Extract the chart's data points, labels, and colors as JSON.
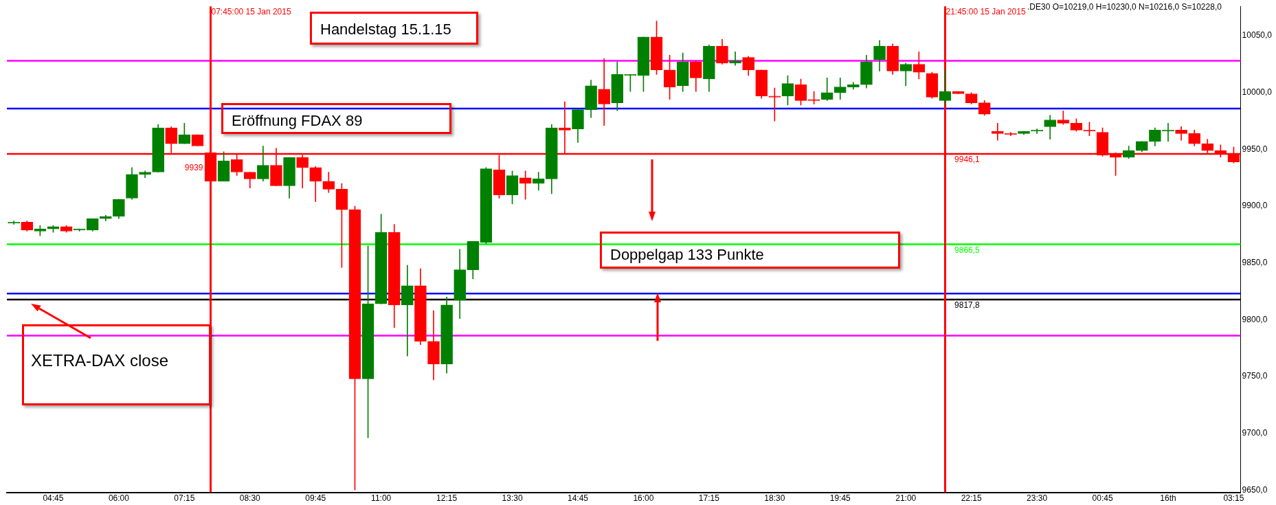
{
  "chart_data": {
    "type": "candlestick",
    "annotations": [
      ".DE30 O=10219,0 H=10230,0 N=10216,0 S=10228,0",
      "Handelstag 15.1.15",
      "Eröffnung FDAX 89",
      "Doppelgap 133 Punkte",
      "XETRA-DAX close",
      {
        "text": "9939",
        "x": "2015-01-15T07:45",
        "y": 9939
      }
    ],
    "x": [
      "2015-01-15T04:00",
      "2015-01-15T04:15",
      "2015-01-15T04:30",
      "2015-01-15T04:45",
      "2015-01-15T05:00",
      "2015-01-15T05:15",
      "2015-01-15T05:30",
      "2015-01-15T05:45",
      "2015-01-15T06:00",
      "2015-01-15T06:15",
      "2015-01-15T06:30",
      "2015-01-15T06:45",
      "2015-01-15T07:00",
      "2015-01-15T07:15",
      "2015-01-15T07:30",
      "2015-01-15T07:45",
      "2015-01-15T08:00",
      "2015-01-15T08:15",
      "2015-01-15T08:30",
      "2015-01-15T08:45",
      "2015-01-15T09:00",
      "2015-01-15T09:15",
      "2015-01-15T09:30",
      "2015-01-15T09:45",
      "2015-01-15T10:00",
      "2015-01-15T10:15",
      "2015-01-15T10:30",
      "2015-01-15T10:45",
      "2015-01-15T11:00",
      "2015-01-15T11:15",
      "2015-01-15T11:30",
      "2015-01-15T11:45",
      "2015-01-15T12:00",
      "2015-01-15T12:15",
      "2015-01-15T12:30",
      "2015-01-15T12:45",
      "2015-01-15T13:00",
      "2015-01-15T13:15",
      "2015-01-15T13:30",
      "2015-01-15T13:45",
      "2015-01-15T14:00",
      "2015-01-15T14:15",
      "2015-01-15T14:30",
      "2015-01-15T14:45",
      "2015-01-15T15:00",
      "2015-01-15T15:15",
      "2015-01-15T15:30",
      "2015-01-15T15:45",
      "2015-01-15T16:00",
      "2015-01-15T16:15",
      "2015-01-15T16:30",
      "2015-01-15T16:45",
      "2015-01-15T17:00",
      "2015-01-15T17:15",
      "2015-01-15T17:30",
      "2015-01-15T17:45",
      "2015-01-15T18:00",
      "2015-01-15T18:15",
      "2015-01-15T18:30",
      "2015-01-15T18:45",
      "2015-01-15T19:00",
      "2015-01-15T19:15",
      "2015-01-15T19:30",
      "2015-01-15T19:45",
      "2015-01-15T20:00",
      "2015-01-15T20:15",
      "2015-01-15T20:30",
      "2015-01-15T20:45",
      "2015-01-15T21:00",
      "2015-01-15T21:15",
      "2015-01-15T21:30",
      "2015-01-15T21:45",
      "2015-01-15T22:00",
      "2015-01-15T22:15",
      "2015-01-15T22:30",
      "2015-01-15T22:45",
      "2015-01-15T23:00",
      "2015-01-15T23:15",
      "2015-01-15T23:30",
      "2015-01-15T23:45",
      "2015-01-16T00:00",
      "2015-01-16T00:15",
      "2015-01-16T00:30",
      "2015-01-16T00:45",
      "2015-01-16T01:00",
      "2015-01-16T01:15",
      "2015-01-16T01:30",
      "2015-01-16T01:45",
      "2015-01-16T02:00",
      "2015-01-16T02:15",
      "2015-01-16T02:30",
      "2015-01-16T02:45",
      "2015-01-16T03:00",
      "2015-01-16T03:15"
    ],
    "ohlc": [
      [
        9885,
        9887,
        9884,
        9886
      ],
      [
        9886,
        9887,
        9878,
        9879
      ],
      [
        9878,
        9883,
        9874,
        9880
      ],
      [
        9880,
        9883,
        9877,
        9882
      ],
      [
        9882,
        9883,
        9877,
        9878
      ],
      [
        9879,
        9880,
        9878,
        9880
      ],
      [
        9879,
        9889,
        9878,
        9889
      ],
      [
        9889,
        9892,
        9887,
        9891
      ],
      [
        9891,
        9906,
        9889,
        9906
      ],
      [
        9907,
        9934,
        9906,
        9928
      ],
      [
        9928,
        9931,
        9925,
        9930
      ],
      [
        9930,
        9972,
        9930,
        9969
      ],
      [
        9969,
        9970,
        9947,
        9955
      ],
      [
        9955,
        9973,
        9955,
        9963
      ],
      [
        9963,
        9963,
        9953,
        9953
      ],
      [
        9947,
        9953,
        9922,
        9922
      ],
      [
        9922,
        9948,
        9922,
        9940
      ],
      [
        9941,
        9946,
        9927,
        9930
      ],
      [
        9930,
        9930,
        9916,
        9924
      ],
      [
        9924,
        9953,
        9922,
        9936
      ],
      [
        9936,
        9951,
        9918,
        9918
      ],
      [
        9918,
        9943,
        9907,
        9943
      ],
      [
        9943,
        9945,
        9916,
        9934
      ],
      [
        9934,
        9935,
        9904,
        9922
      ],
      [
        9922,
        9930,
        9912,
        9915
      ],
      [
        9915,
        9920,
        9846,
        9897
      ],
      [
        9897,
        9900,
        9650,
        9748
      ],
      [
        9748,
        9865,
        9696,
        9814
      ],
      [
        9814,
        9893,
        9814,
        9877
      ],
      [
        9877,
        9884,
        9793,
        9813
      ],
      [
        9813,
        9848,
        9768,
        9830
      ],
      [
        9830,
        9845,
        9778,
        9781
      ],
      [
        9781,
        9808,
        9747,
        9761
      ],
      [
        9761,
        9820,
        9753,
        9813
      ],
      [
        9817,
        9862,
        9801,
        9844
      ],
      [
        9844,
        9869,
        9836,
        9869
      ],
      [
        9868,
        9934,
        9867,
        9933
      ],
      [
        9932,
        9945,
        9907,
        9910
      ],
      [
        9910,
        9931,
        9902,
        9927
      ],
      [
        9925,
        9931,
        9906,
        9920
      ],
      [
        9920,
        9930,
        9914,
        9924
      ],
      [
        9924,
        9972,
        9911,
        9969
      ],
      [
        9969,
        9992,
        9946,
        9967
      ],
      [
        9968,
        9985,
        9956,
        9985
      ],
      [
        9985,
        10011,
        9978,
        10006
      ],
      [
        10003,
        10030,
        9971,
        9990
      ],
      [
        9991,
        10027,
        9984,
        10016
      ],
      [
        10015,
        10016,
        10001,
        10016
      ],
      [
        10015,
        10049,
        10001,
        10049
      ],
      [
        10049,
        10063,
        10016,
        10020
      ],
      [
        10020,
        10033,
        9994,
        10005
      ],
      [
        10006,
        10035,
        10001,
        10027
      ],
      [
        10027,
        10028,
        10001,
        10013
      ],
      [
        10012,
        10042,
        10001,
        10041
      ],
      [
        10041,
        10047,
        10025,
        10026
      ],
      [
        10026,
        10036,
        10024,
        10028
      ],
      [
        10031,
        10032,
        10015,
        10020
      ],
      [
        10020,
        10020,
        9995,
        9997
      ],
      [
        9997,
        10004,
        9975,
        9996
      ],
      [
        9997,
        10015,
        9989,
        10008
      ],
      [
        10007,
        10012,
        9989,
        9993
      ],
      [
        9994,
        10001,
        9990,
        9993
      ],
      [
        9994,
        10013,
        9993,
        10000
      ],
      [
        10000,
        10013,
        9994,
        10005
      ],
      [
        10005,
        10009,
        10003,
        10007
      ],
      [
        10007,
        10033,
        10004,
        10027
      ],
      [
        10029,
        10046,
        10019,
        10041
      ],
      [
        10041,
        10043,
        10016,
        10019
      ],
      [
        10019,
        10026,
        10006,
        10025
      ],
      [
        10025,
        10036,
        10012,
        10018
      ],
      [
        10017,
        10018,
        9995,
        9996
      ],
      [
        9993,
        10020,
        9989,
        10001
      ],
      [
        10001,
        10001,
        9999,
        9999
      ],
      [
        9999,
        10000,
        9990,
        9991
      ],
      [
        9991,
        9993,
        9980,
        9981
      ],
      [
        9966,
        9973,
        9958,
        9964
      ],
      [
        9964,
        9965,
        9962,
        9963
      ],
      [
        9964,
        9966,
        9963,
        9966
      ],
      [
        9966,
        9968,
        9964,
        9967
      ],
      [
        9970,
        9980,
        9959,
        9976
      ],
      [
        9976,
        9984,
        9972,
        9973
      ],
      [
        9973,
        9977,
        9966,
        9967
      ],
      [
        9967,
        9974,
        9962,
        9966
      ],
      [
        9965,
        9969,
        9944,
        9945
      ],
      [
        9946,
        9947,
        9927,
        9943
      ],
      [
        9943,
        9953,
        9942,
        9949
      ],
      [
        9949,
        9957,
        9948,
        9957
      ],
      [
        9957,
        9969,
        9953,
        9967
      ],
      [
        9966,
        9973,
        9957,
        9967
      ],
      [
        9967,
        9970,
        9958,
        9964
      ],
      [
        9964,
        9967,
        9953,
        9955
      ],
      [
        9955,
        9959,
        9947,
        9949
      ],
      [
        9949,
        9954,
        9943,
        9946
      ],
      [
        9946,
        9952,
        9938,
        9939
      ]
    ],
    "colors": [
      "#008000",
      "#ff0000",
      "#008000",
      "#008000",
      "#ff0000",
      "#008000",
      "#008000",
      "#008000",
      "#008000",
      "#008000",
      "#008000",
      "#008000",
      "#ff0000",
      "#008000",
      "#ff0000",
      "#ff0000",
      "#008000",
      "#ff0000",
      "#ff0000",
      "#008000",
      "#ff0000",
      "#008000",
      "#ff0000",
      "#ff0000",
      "#ff0000",
      "#ff0000",
      "#ff0000",
      "#008000",
      "#008000",
      "#ff0000",
      "#008000",
      "#ff0000",
      "#ff0000",
      "#008000",
      "#008000",
      "#008000",
      "#008000",
      "#ff0000",
      "#008000",
      "#ff0000",
      "#008000",
      "#008000",
      "#ff0000",
      "#008000",
      "#008000",
      "#ff0000",
      "#008000",
      "#008000",
      "#008000",
      "#ff0000",
      "#ff0000",
      "#008000",
      "#ff0000",
      "#008000",
      "#ff0000",
      "#008000",
      "#ff0000",
      "#ff0000",
      "#ff0000",
      "#008000",
      "#ff0000",
      "#ff0000",
      "#008000",
      "#008000",
      "#008000",
      "#008000",
      "#008000",
      "#ff0000",
      "#008000",
      "#ff0000",
      "#ff0000",
      "#008000",
      "#ff0000",
      "#ff0000",
      "#ff0000",
      "#ff0000",
      "#ff0000",
      "#008000",
      "#008000",
      "#008000",
      "#ff0000",
      "#ff0000",
      "#ff0000",
      "#ff0000",
      "#ff0000",
      "#008000",
      "#008000",
      "#008000",
      "#008000",
      "#ff0000",
      "#ff0000",
      "#ff0000",
      "#ff0000",
      "#ff0000"
    ],
    "xlim": [
      "2015-01-15T03:52",
      "2015-01-16T03:23"
    ],
    "xticks": [
      {
        "value": "2015-01-15T04:45",
        "label": "04:45"
      },
      {
        "value": "2015-01-15T06:00",
        "label": "06:00"
      },
      {
        "value": "2015-01-15T07:15",
        "label": "07:15"
      },
      {
        "value": "2015-01-15T08:30",
        "label": "08:30"
      },
      {
        "value": "2015-01-15T09:45",
        "label": "09:45"
      },
      {
        "value": "2015-01-15T11:00",
        "label": "11:00"
      },
      {
        "value": "2015-01-15T12:15",
        "label": "12:15"
      },
      {
        "value": "2015-01-15T13:30",
        "label": "13:30"
      },
      {
        "value": "2015-01-15T14:45",
        "label": "14:45"
      },
      {
        "value": "2015-01-15T16:00",
        "label": "16:00"
      },
      {
        "value": "2015-01-15T17:15",
        "label": "17:15"
      },
      {
        "value": "2015-01-15T18:30",
        "label": "18:30"
      },
      {
        "value": "2015-01-15T19:45",
        "label": "19:45"
      },
      {
        "value": "2015-01-15T21:00",
        "label": "21:00"
      },
      {
        "value": "2015-01-15T22:15",
        "label": "22:15"
      },
      {
        "value": "2015-01-15T23:30",
        "label": "23:30"
      },
      {
        "value": "2015-01-16T00:45",
        "label": "00:45"
      },
      {
        "value": "2015-01-16T02:00",
        "label": "16th"
      },
      {
        "value": "2015-01-16T03:15",
        "label": "03:15"
      }
    ],
    "ylim": [
      9648,
      10076
    ],
    "yticks": [
      {
        "value": 9650,
        "label": "9650,0"
      },
      {
        "value": 9700,
        "label": "9700,0"
      },
      {
        "value": 9750,
        "label": "9750,0"
      },
      {
        "value": 9800,
        "label": "9800,0"
      },
      {
        "value": 9850,
        "label": "9850,0"
      },
      {
        "value": 9900,
        "label": "9900,0"
      },
      {
        "value": 9950,
        "label": "9950,0"
      },
      {
        "value": 10000,
        "label": "10000,0"
      },
      {
        "value": 10050,
        "label": "10050,0"
      }
    ],
    "ref_lines": [
      {
        "axis": "y",
        "value": 10028,
        "color": "#ff00ff"
      },
      {
        "axis": "y",
        "value": 9986,
        "color": "#0000ff"
      },
      {
        "axis": "y",
        "value": 9946.1,
        "label": "9946,1",
        "color": "#ff0000"
      },
      {
        "axis": "y",
        "value": 9866.5,
        "label": "9866,5",
        "color": "#00ff00"
      },
      {
        "axis": "y",
        "value": 9823,
        "color": "#0000ff"
      },
      {
        "axis": "y",
        "value": 9817.8,
        "label": "9817,8",
        "color": "#000000"
      },
      {
        "axis": "y",
        "value": 9786,
        "color": "#ff00ff"
      },
      {
        "axis": "x",
        "value": "2015-01-15T07:45",
        "label": "07:45:00 15 Jan 2015",
        "color": "#ff0000"
      },
      {
        "axis": "x",
        "value": "2015-01-15T21:45",
        "label": "21:45:00 15 Jan 2015",
        "color": "#ff0000"
      }
    ],
    "grid": false,
    "legend": false
  }
}
